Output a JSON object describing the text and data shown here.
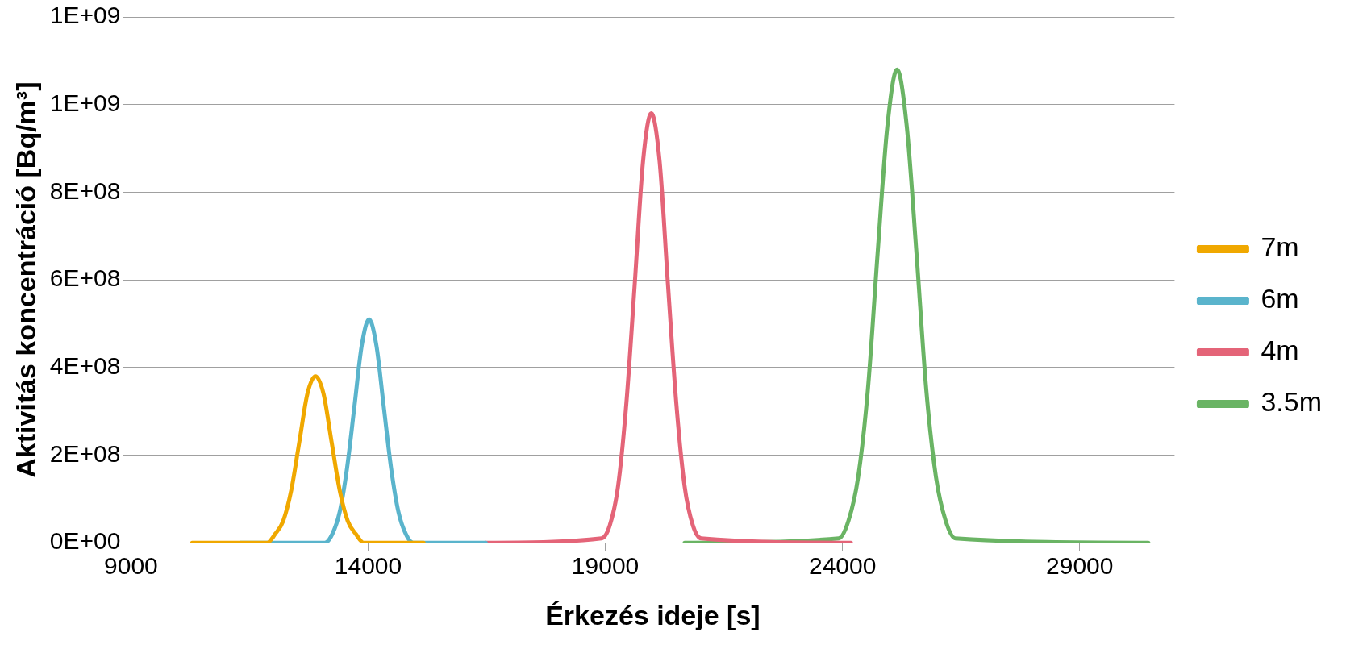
{
  "chart_data": {
    "type": "line",
    "xlabel": "Érkezés ideje [s]",
    "ylabel": "Aktivitás koncentráció [Bq/m³]",
    "xlim": [
      9000,
      31000
    ],
    "xticks": [
      9000,
      14000,
      19000,
      24000,
      29000
    ],
    "ylim": [
      0,
      1200000000
    ],
    "yticks": [
      {
        "value": 0,
        "label": "0E+00"
      },
      {
        "value": 200000000,
        "label": "2E+08"
      },
      {
        "value": 400000000,
        "label": "4E+08"
      },
      {
        "value": 600000000,
        "label": "6E+08"
      },
      {
        "value": 800000000,
        "label": "8E+08"
      },
      {
        "value": 1000000000,
        "label": "1E+09"
      },
      {
        "value": 1200000000,
        "label": "1E+09"
      }
    ],
    "grid": "y",
    "legend": "right",
    "marker": "none",
    "line_style": "solid",
    "series": [
      {
        "name": "7m",
        "color": "#f0a800",
        "x": [
          10290,
          11870,
          12040,
          12210,
          12380,
          12550,
          12720,
          12890,
          13060,
          13230,
          13400,
          13570,
          13740,
          13910,
          15170
        ],
        "values": [
          0,
          0,
          20000000,
          50000000,
          120000000,
          230000000,
          340000000,
          380000000,
          340000000,
          230000000,
          120000000,
          50000000,
          20000000,
          0,
          0
        ]
      },
      {
        "name": "6m",
        "color": "#5ab4cc",
        "x": [
          11300,
          13090,
          13245,
          13400,
          13555,
          13710,
          13865,
          14020,
          14175,
          14330,
          14485,
          14640,
          14795,
          14950,
          16480
        ],
        "values": [
          0,
          0,
          20000000,
          70000000,
          170000000,
          310000000,
          450000000,
          510000000,
          450000000,
          310000000,
          170000000,
          70000000,
          20000000,
          0,
          0
        ]
      },
      {
        "name": "4m",
        "color": "#e46478",
        "x": [
          16480,
          18920,
          19095,
          19270,
          19445,
          19620,
          19795,
          19970,
          20145,
          20320,
          20495,
          20670,
          20845,
          21020,
          24180
        ],
        "values": [
          0,
          10000000,
          40000000,
          130000000,
          320000000,
          590000000,
          870000000,
          980000000,
          870000000,
          590000000,
          320000000,
          130000000,
          40000000,
          10000000,
          0
        ]
      },
      {
        "name": "3.5m",
        "color": "#6ab464",
        "x": [
          20670,
          23920,
          24125,
          24330,
          24535,
          24740,
          24945,
          25150,
          25355,
          25560,
          25765,
          25970,
          26175,
          26380,
          30450
        ],
        "values": [
          0,
          10000000,
          50000000,
          150000000,
          350000000,
          660000000,
          950000000,
          1080000000,
          950000000,
          660000000,
          350000000,
          150000000,
          50000000,
          10000000,
          0
        ]
      }
    ]
  }
}
